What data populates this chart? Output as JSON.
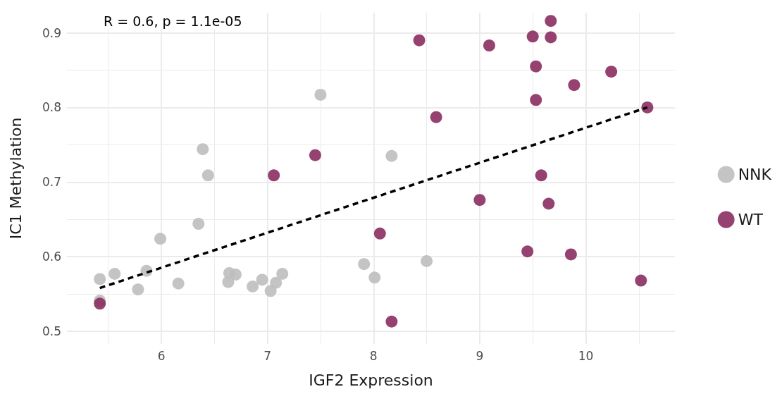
{
  "chart_data": {
    "type": "scatter",
    "xlabel": "IGF2 Expression",
    "ylabel": "IC1 Methylation",
    "annotations": [
      "R = 0.6, p = 1.1e-05"
    ],
    "xlim": [
      5.11,
      10.84
    ],
    "xticks": [
      6,
      7,
      8,
      9,
      10
    ],
    "ylim": [
      0.483,
      0.927
    ],
    "yticks": [
      0.5,
      0.6,
      0.7,
      0.8,
      0.9
    ],
    "grid": true,
    "legend": "right",
    "marker": "circle",
    "series": [
      {
        "name": "NNK",
        "color": "#bebebe",
        "x": [
          5.42,
          5.42,
          5.56,
          5.78,
          5.86,
          5.99,
          6.16,
          6.35,
          6.39,
          6.44,
          6.63,
          6.64,
          6.7,
          6.86,
          6.95,
          7.03,
          7.08,
          7.14,
          7.5,
          7.91,
          8.01,
          8.17,
          8.5
        ],
        "values": [
          0.541,
          0.57,
          0.577,
          0.556,
          0.581,
          0.624,
          0.564,
          0.644,
          0.744,
          0.709,
          0.566,
          0.578,
          0.576,
          0.56,
          0.569,
          0.554,
          0.565,
          0.577,
          0.817,
          0.59,
          0.572,
          0.735,
          0.594
        ]
      },
      {
        "name": "WT",
        "color": "#8b2e62",
        "x": [
          5.42,
          7.06,
          7.45,
          8.06,
          8.17,
          8.43,
          8.59,
          9.0,
          9.09,
          9.45,
          9.5,
          9.53,
          9.53,
          9.58,
          9.65,
          9.67,
          9.67,
          9.86,
          9.89,
          10.24,
          10.52,
          10.58
        ],
        "values": [
          0.537,
          0.709,
          0.736,
          0.631,
          0.513,
          0.89,
          0.787,
          0.676,
          0.883,
          0.607,
          0.895,
          0.855,
          0.81,
          0.709,
          0.671,
          0.894,
          0.916,
          0.603,
          0.83,
          0.848,
          0.568,
          0.8
        ]
      },
      {
        "type": "line",
        "color": "#000000",
        "line_style": "dashed",
        "marker": "none",
        "x": [
          5.42,
          10.58
        ],
        "values": [
          0.558,
          0.8
        ]
      }
    ]
  }
}
